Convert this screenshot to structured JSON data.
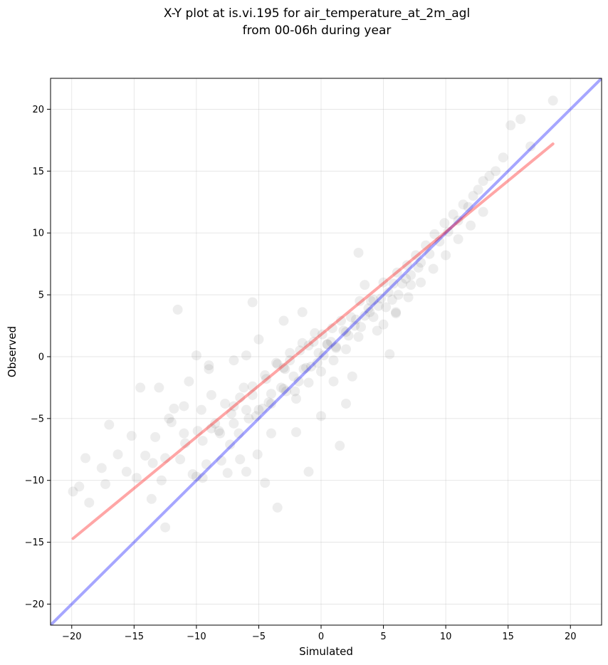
{
  "chart_data": {
    "type": "scatter",
    "title": "X-Y plot at is.vi.195 for air_temperature_at_2m_agl",
    "subtitle": "from 00-06h during year",
    "xlabel": "Simulated",
    "ylabel": "Observed",
    "xlim": [
      -21.7,
      22.5
    ],
    "ylim": [
      -21.7,
      22.5
    ],
    "xticks": [
      -20,
      -15,
      -10,
      -5,
      0,
      5,
      10,
      15,
      20
    ],
    "yticks": [
      -20,
      -15,
      -10,
      -5,
      0,
      5,
      10,
      15,
      20
    ],
    "grid": true,
    "legend": "none",
    "point_color": "#000000",
    "point_alpha": 0.07,
    "lines": [
      {
        "type": "identity",
        "color": "#0000ff",
        "x": [
          -21.7,
          22.5
        ],
        "y": [
          -21.7,
          22.5
        ]
      },
      {
        "type": "regression",
        "color": "#ff0000",
        "x": [
          -19.9,
          18.6
        ],
        "y": [
          -14.7,
          17.2
        ]
      }
    ],
    "points": {
      "x": [
        -19.9,
        -19.4,
        -18.6,
        -18.9,
        -17.6,
        -17.3,
        -17.0,
        -16.3,
        -15.6,
        -15.2,
        -14.8,
        -14.1,
        -13.6,
        -13.3,
        -12.8,
        -12.5,
        -12.2,
        -11.8,
        -11.3,
        -10.9,
        -10.6,
        -10.3,
        -9.9,
        -9.6,
        -9.2,
        -8.8,
        -8.5,
        -8.1,
        -7.7,
        -7.3,
        -7.0,
        -6.6,
        -6.2,
        -5.8,
        -5.5,
        -5.1,
        -4.7,
        -4.4,
        -4.0,
        -3.6,
        -3.2,
        -2.9,
        -2.5,
        -2.1,
        -1.7,
        -1.4,
        -1.0,
        -0.6,
        -0.3,
        0.1,
        0.5,
        0.9,
        1.2,
        1.6,
        2.0,
        2.4,
        2.7,
        3.1,
        3.5,
        3.9,
        4.2,
        4.6,
        5.0,
        5.4,
        5.7,
        6.1,
        6.5,
        6.9,
        7.2,
        7.6,
        8.0,
        8.4,
        8.7,
        9.1,
        9.5,
        9.9,
        10.2,
        10.6,
        11.0,
        11.4,
        11.8,
        12.2,
        12.6,
        13.0,
        13.5,
        14.0,
        14.6,
        15.2,
        16.0,
        16.8,
        18.6,
        -13.0,
        -12.0,
        -11.5,
        -9.5,
        -8.0,
        -6.0,
        -5.5,
        -4.0,
        -3.5,
        -3.0,
        -1.0,
        0.5,
        1.5,
        2.5,
        4.0,
        5.5,
        -11.0,
        -10.0,
        -9.0,
        -7.5,
        -6.5,
        -5.0,
        -4.5,
        -2.0,
        -1.5,
        0.0,
        1.0,
        2.0,
        3.0,
        3.5,
        4.5,
        6.0,
        -8.8,
        -7.2,
        -6.0,
        -4.2,
        -3.0,
        -2.2,
        -1.2,
        -0.2,
        0.8,
        1.8,
        2.8,
        3.8,
        4.8,
        5.8,
        6.8,
        7.8,
        -9.5,
        -8.2,
        -7.0,
        -5.2,
        -4.0,
        -2.8,
        -1.8,
        -0.8,
        0.2,
        1.2,
        2.2,
        3.2,
        4.2,
        5.2,
        6.2,
        7.2,
        -14.5,
        -13.5,
        -12.5,
        -11.0,
        -10.0,
        -9.0,
        -7.0,
        -6.0,
        -5.0,
        -3.0,
        -2.0,
        -1.0,
        0.0,
        1.0,
        2.0,
        3.0,
        5.0,
        6.0,
        7.0,
        8.0,
        9.0,
        10.0,
        11.0,
        12.0,
        13.0,
        -6.5,
        -5.5,
        -4.5,
        -3.5,
        -2.5,
        -1.5,
        -0.5
      ],
      "y": [
        -10.9,
        -10.5,
        -11.8,
        -8.2,
        -9.0,
        -10.3,
        -5.5,
        -7.9,
        -9.3,
        -6.4,
        -9.8,
        -8.0,
        -11.5,
        -6.5,
        -10.0,
        -8.2,
        -5.0,
        -4.2,
        -8.3,
        -7.0,
        -2.0,
        -9.5,
        -6.0,
        -4.3,
        -8.7,
        -3.1,
        -5.4,
        -6.2,
        -3.8,
        -7.1,
        -4.0,
        -6.2,
        -2.5,
        -5.0,
        -3.1,
        -7.9,
        -4.2,
        -1.8,
        -3.0,
        -0.5,
        -2.5,
        -1.0,
        -0.3,
        -2.8,
        0.5,
        -1.0,
        0.9,
        1.2,
        -0.5,
        1.8,
        1.0,
        2.3,
        0.8,
        2.9,
        2.0,
        3.2,
        2.5,
        4.5,
        3.3,
        3.6,
        4.6,
        4.1,
        6.0,
        5.2,
        4.6,
        6.8,
        5.9,
        7.4,
        6.6,
        8.2,
        7.6,
        9.0,
        8.3,
        9.9,
        9.3,
        10.8,
        10.1,
        11.5,
        11.0,
        12.3,
        12.1,
        13.0,
        13.5,
        14.2,
        14.6,
        15.0,
        16.1,
        18.7,
        19.2,
        17.0,
        20.7,
        -2.5,
        -5.3,
        3.8,
        -9.8,
        -8.4,
        -9.3,
        4.4,
        -6.2,
        -12.2,
        2.9,
        -9.3,
        1.0,
        -7.2,
        -1.6,
        4.5,
        0.2,
        -6.2,
        0.1,
        -1.0,
        -9.4,
        -8.3,
        1.4,
        -10.2,
        -6.1,
        3.6,
        -4.8,
        -2.0,
        -3.8,
        8.4,
        5.8,
        2.1,
        3.5,
        -5.8,
        -4.6,
        -4.3,
        -3.7,
        -2.6,
        -1.6,
        -0.9,
        0.3,
        1.2,
        2.1,
        3.0,
        3.9,
        4.7,
        5.9,
        6.3,
        7.2,
        -6.8,
        -6.0,
        -5.4,
        -4.8,
        -3.8,
        -2.8,
        -2.0,
        -0.8,
        0.1,
        0.7,
        1.7,
        2.4,
        3.2,
        4.0,
        5.0,
        5.8,
        -2.5,
        -8.6,
        -13.8,
        -4.0,
        -9.7,
        -0.7,
        -0.3,
        0.1,
        -4.3,
        -0.9,
        -3.4,
        -2.1,
        -1.2,
        -0.3,
        0.6,
        1.6,
        2.6,
        3.6,
        4.8,
        6.0,
        7.1,
        8.2,
        9.5,
        10.6,
        11.7,
        -3.3,
        -2.4,
        -1.5,
        -0.6,
        0.3,
        1.1,
        1.9
      ]
    }
  }
}
